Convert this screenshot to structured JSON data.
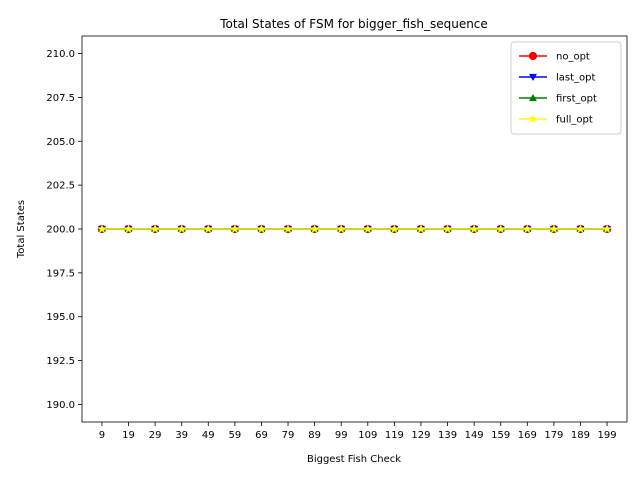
{
  "chart_data": {
    "type": "line",
    "title": "Total States of FSM for bigger_fish_sequence",
    "xlabel": "Biggest Fish Check",
    "ylabel": "Total States",
    "categories": [
      "9",
      "19",
      "29",
      "39",
      "49",
      "59",
      "69",
      "79",
      "89",
      "99",
      "109",
      "119",
      "129",
      "139",
      "149",
      "159",
      "169",
      "179",
      "189",
      "199"
    ],
    "ylim": [
      189.0,
      211.0
    ],
    "yticks": [
      "190.0",
      "192.5",
      "195.0",
      "197.5",
      "200.0",
      "202.5",
      "205.0",
      "207.5",
      "210.0"
    ],
    "legend_position": "top-right",
    "grid": false,
    "series": [
      {
        "name": "no_opt",
        "color": "#ff0000",
        "marker": "circle",
        "values": [
          200,
          200,
          200,
          200,
          200,
          200,
          200,
          200,
          200,
          200,
          200,
          200,
          200,
          200,
          200,
          200,
          200,
          200,
          200,
          200
        ]
      },
      {
        "name": "last_opt",
        "color": "#0000ff",
        "marker": "triangle-down",
        "values": [
          200,
          200,
          200,
          200,
          200,
          200,
          200,
          200,
          200,
          200,
          200,
          200,
          200,
          200,
          200,
          200,
          200,
          200,
          200,
          200
        ]
      },
      {
        "name": "first_opt",
        "color": "#008000",
        "marker": "triangle-up",
        "values": [
          200,
          200,
          200,
          200,
          200,
          200,
          200,
          200,
          200,
          200,
          200,
          200,
          200,
          200,
          200,
          200,
          200,
          200,
          200,
          200
        ]
      },
      {
        "name": "full_opt",
        "color": "#ffff00",
        "marker": "star",
        "values": [
          200,
          200,
          200,
          200,
          200,
          200,
          200,
          200,
          200,
          200,
          200,
          200,
          200,
          200,
          200,
          200,
          200,
          200,
          200,
          200
        ]
      }
    ]
  }
}
